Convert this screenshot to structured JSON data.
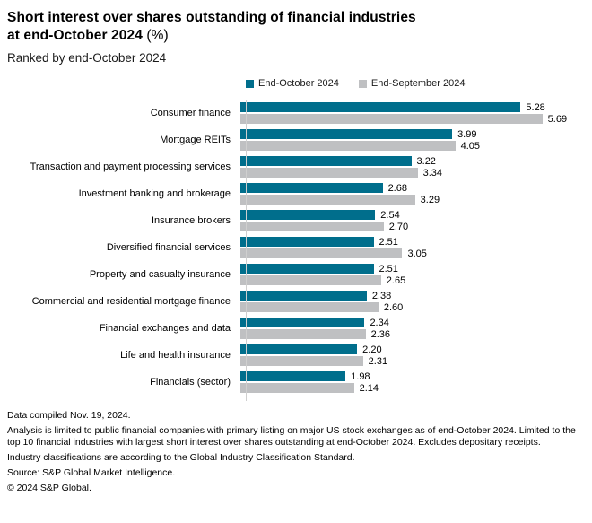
{
  "header": {
    "title_line1": "Short interest over shares outstanding of financial industries",
    "title_line2": "at end-October 2024",
    "title_unit": "(%)",
    "subtitle": "Ranked by end-October 2024"
  },
  "legend": [
    {
      "label": "End-October 2024",
      "color": "#006e8c"
    },
    {
      "label": "End-September 2024",
      "color": "#bfc0c2"
    }
  ],
  "chart_data": {
    "type": "bar",
    "orientation": "horizontal",
    "title": "Short interest over shares outstanding of financial industries at end-October 2024 (%)",
    "subtitle": "Ranked by end-October 2024",
    "xlim": [
      0,
      6
    ],
    "grid": false,
    "legend_position": "top",
    "value_labels": true,
    "categories": [
      "Consumer finance",
      "Mortgage REITs",
      "Transaction and payment processing services",
      "Investment banking and brokerage",
      "Insurance brokers",
      "Diversified financial services",
      "Property and casualty insurance",
      "Commercial and residential mortgage finance",
      "Financial exchanges and data",
      "Life and health insurance",
      "Financials (sector)"
    ],
    "series": [
      {
        "name": "End-October 2024",
        "color": "#006e8c",
        "values": [
          5.28,
          3.99,
          3.22,
          2.68,
          2.54,
          2.51,
          2.51,
          2.38,
          2.34,
          2.2,
          1.98
        ]
      },
      {
        "name": "End-September 2024",
        "color": "#bfc0c2",
        "values": [
          5.69,
          4.05,
          3.34,
          3.29,
          2.7,
          3.05,
          2.65,
          2.6,
          2.36,
          2.31,
          2.14
        ]
      }
    ]
  },
  "footnotes": [
    "Data compiled Nov. 19, 2024.",
    "Analysis is limited to public financial companies with primary listing on major US stock exchanges as of end-October 2024. Limited to the top 10 financial industries with largest short interest over shares outstanding at end-October 2024. Excludes depositary receipts.",
    "Industry classifications are according to the Global Industry Classification Standard.",
    "Source: S&P Global Market Intelligence.",
    "© 2024 S&P Global."
  ]
}
